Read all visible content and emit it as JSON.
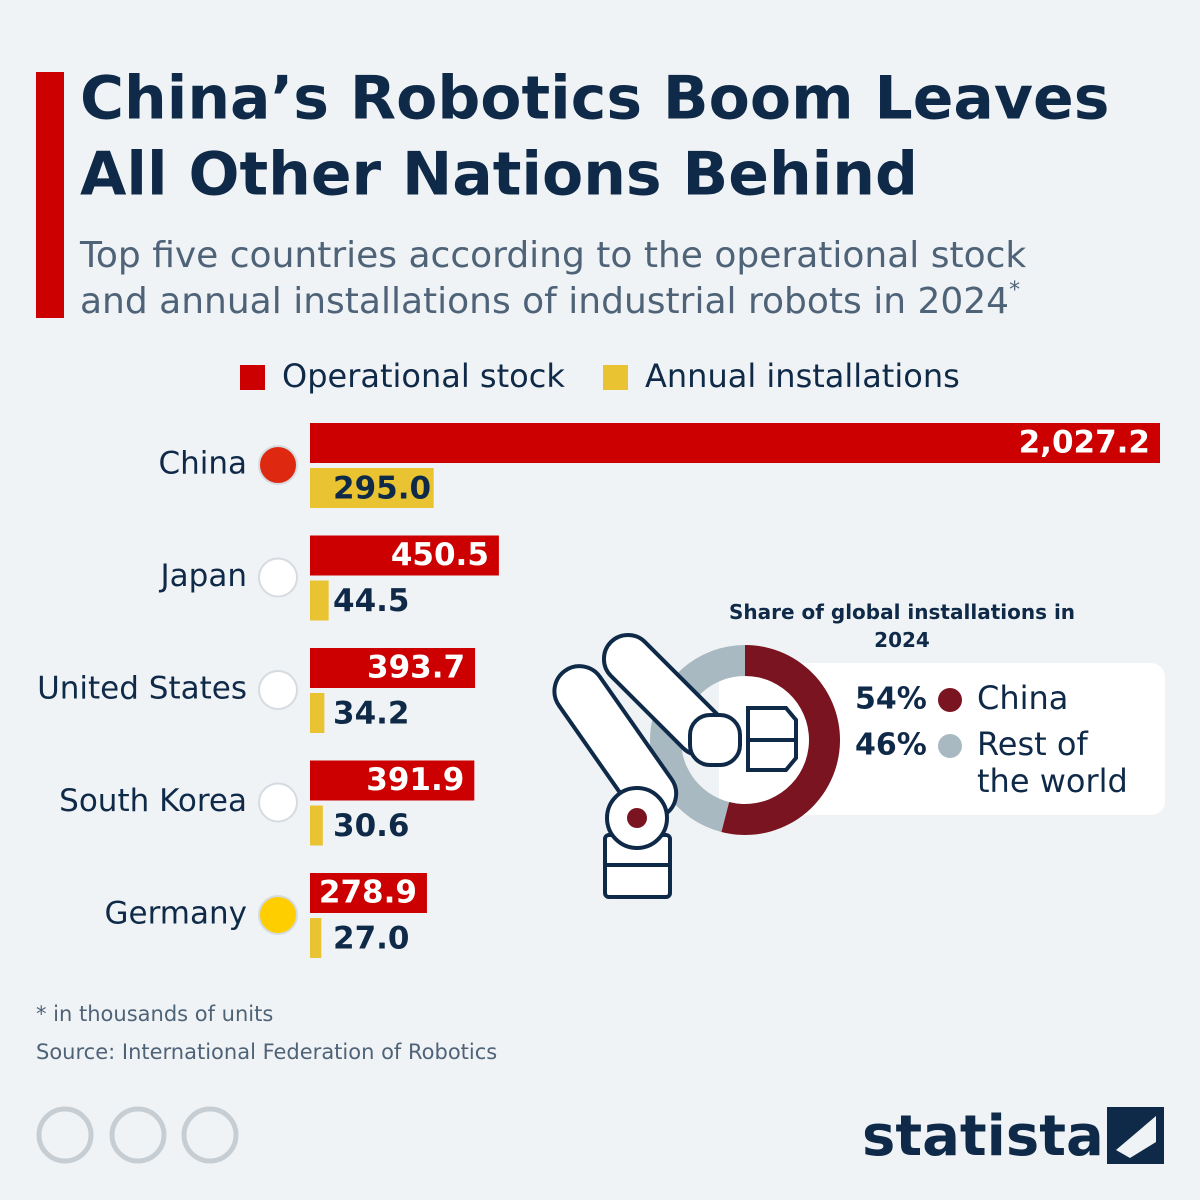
{
  "header": {
    "title_line1": "China’s Robotics Boom Leaves",
    "title_line2": "All Other Nations Behind",
    "subtitle_line1": "Top five countries according to the operational stock",
    "subtitle_line2": "and annual installations of industrial robots in 2024",
    "subtitle_mark": "*"
  },
  "chart_data": [
    {
      "type": "bar",
      "orientation": "horizontal",
      "categories": [
        "China",
        "Japan",
        "United States",
        "South Korea",
        "Germany"
      ],
      "series": [
        {
          "name": "Operational stock",
          "color": "#cc0000",
          "values": [
            2027.2,
            450.5,
            393.7,
            391.9,
            278.9
          ],
          "value_labels": [
            "2,027.2",
            "450.5",
            "393.7",
            "391.9",
            "278.9"
          ]
        },
        {
          "name": "Annual installations",
          "color": "#e9c332",
          "values": [
            295.0,
            44.5,
            34.2,
            30.6,
            27.0
          ],
          "value_labels": [
            "295.0",
            "44.5",
            "34.2",
            "30.6",
            "27.0"
          ]
        }
      ]
    },
    {
      "type": "donut",
      "title": "Share of global installations in 2024",
      "categories": [
        "China",
        "Rest of the world"
      ],
      "values": [
        54,
        46
      ],
      "value_labels": [
        "54%",
        "46%"
      ],
      "colors": [
        "#7a1421",
        "#a8b9c1"
      ]
    }
  ],
  "notes": {
    "unit": "* in thousands of units",
    "source": "Source: International Federation of Robotics"
  },
  "brand": "statista"
}
